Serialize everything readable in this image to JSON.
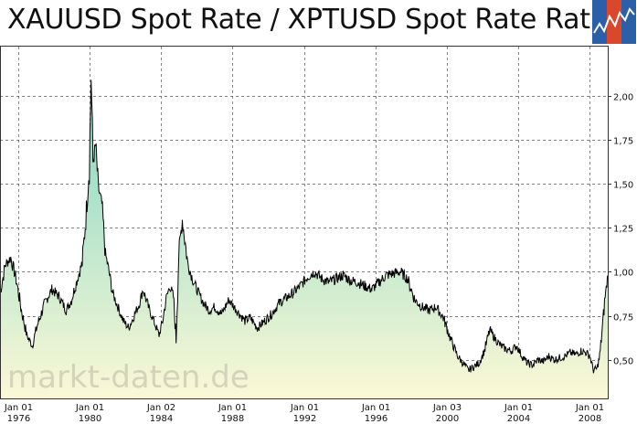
{
  "header": {
    "title": "XAUUSD Spot Rate / XPTUSD Spot Rate Ratio"
  },
  "watermark": "markt-daten.de",
  "colors": {
    "line": "#000000",
    "fill_top": "#7fd6c4",
    "fill_bottom": "#fbf8d6",
    "grid": "#555555",
    "logo_blue": "#2b5fa8",
    "logo_red": "#d9482b"
  },
  "icons": {
    "logo": "chart-logo-icon"
  },
  "chart_data": {
    "type": "area",
    "title": "XAUUSD Spot Rate / XPTUSD Spot Rate Ratio",
    "xlabel": "",
    "ylabel": "",
    "xlim": [
      1975.0,
      2009.0
    ],
    "ylim": [
      0.28,
      2.28
    ],
    "grid": true,
    "y_axis_position": "right",
    "y_ticks": [
      "0,50",
      "0,75",
      "1,00",
      "1,25",
      "1,50",
      "1,75",
      "2,00"
    ],
    "y_tick_values": [
      0.5,
      0.75,
      1.0,
      1.25,
      1.5,
      1.75,
      2.0
    ],
    "x_ticks": [
      {
        "top": "Jan 01",
        "bottom": "1976",
        "x": 1976
      },
      {
        "top": "Jan 01",
        "bottom": "1980",
        "x": 1980
      },
      {
        "top": "Jan 02",
        "bottom": "1984",
        "x": 1984
      },
      {
        "top": "Jan 01",
        "bottom": "1988",
        "x": 1988
      },
      {
        "top": "Jan 01",
        "bottom": "1992",
        "x": 1992
      },
      {
        "top": "Jan 01",
        "bottom": "1996",
        "x": 1996
      },
      {
        "top": "Jan 03",
        "bottom": "2000",
        "x": 2000
      },
      {
        "top": "Jan 01",
        "bottom": "2004",
        "x": 2004
      },
      {
        "top": "Jan 01",
        "bottom": "2008",
        "x": 2008
      }
    ],
    "series": [
      {
        "x": [
          1975.0,
          1975.3,
          1975.6,
          1975.9,
          1976.2,
          1976.5,
          1976.8,
          1977.1,
          1977.5,
          1977.9,
          1978.3,
          1978.7,
          1979.0,
          1979.3,
          1979.6,
          1979.8,
          1980.0,
          1980.1,
          1980.2,
          1980.35,
          1980.5,
          1980.7,
          1980.9,
          1981.1,
          1981.3,
          1981.6,
          1981.9,
          1982.2,
          1982.5,
          1982.8,
          1983.0,
          1983.3,
          1983.6,
          1983.9,
          1984.1,
          1984.3,
          1984.5,
          1984.7,
          1984.85,
          1985.0,
          1985.2,
          1985.5,
          1985.8,
          1986.1,
          1986.4,
          1986.7,
          1987.0,
          1987.4,
          1987.8,
          1988.1,
          1988.4,
          1988.7,
          1989.0,
          1989.4,
          1989.8,
          1990.2,
          1990.6,
          1991.0,
          1991.4,
          1991.8,
          1992.2,
          1992.6,
          1993.0,
          1993.4,
          1993.8,
          1994.2,
          1994.6,
          1995.0,
          1995.4,
          1995.8,
          1996.2,
          1996.6,
          1997.0,
          1997.4,
          1997.8,
          1998.2,
          1998.6,
          1999.0,
          1999.4,
          1999.8,
          2000.2,
          2000.6,
          2000.9,
          2001.2,
          2001.5,
          2001.8,
          2002.1,
          2002.4,
          2002.7,
          2003.0,
          2003.3,
          2003.6,
          2003.9,
          2004.2,
          2004.5,
          2004.8,
          2005.1,
          2005.4,
          2005.7,
          2006.0,
          2006.3,
          2006.6,
          2006.9,
          2007.2,
          2007.5,
          2007.8,
          2008.0,
          2008.2,
          2008.4,
          2008.55,
          2008.7,
          2008.85,
          2008.95,
          2009.0
        ],
        "values": [
          0.88,
          1.04,
          1.08,
          0.96,
          0.78,
          0.64,
          0.58,
          0.7,
          0.82,
          0.9,
          0.86,
          0.78,
          0.84,
          0.95,
          1.05,
          1.3,
          1.6,
          2.12,
          1.62,
          1.72,
          1.48,
          1.38,
          1.1,
          1.0,
          0.88,
          0.8,
          0.72,
          0.68,
          0.75,
          0.82,
          0.9,
          0.8,
          0.72,
          0.64,
          0.72,
          0.85,
          0.92,
          0.86,
          0.62,
          1.1,
          1.3,
          1.05,
          0.95,
          0.88,
          0.82,
          0.78,
          0.8,
          0.76,
          0.84,
          0.8,
          0.76,
          0.72,
          0.74,
          0.68,
          0.72,
          0.76,
          0.82,
          0.85,
          0.88,
          0.92,
          0.97,
          1.0,
          0.96,
          0.94,
          0.96,
          0.98,
          0.95,
          0.94,
          0.92,
          0.9,
          0.94,
          0.98,
          0.99,
          1.0,
          0.96,
          0.84,
          0.8,
          0.78,
          0.8,
          0.74,
          0.62,
          0.52,
          0.48,
          0.44,
          0.46,
          0.48,
          0.55,
          0.67,
          0.62,
          0.58,
          0.56,
          0.55,
          0.58,
          0.52,
          0.48,
          0.47,
          0.5,
          0.49,
          0.52,
          0.5,
          0.51,
          0.52,
          0.54,
          0.53,
          0.55,
          0.54,
          0.52,
          0.44,
          0.45,
          0.52,
          0.68,
          0.86,
          0.93,
          0.98
        ]
      }
    ]
  }
}
